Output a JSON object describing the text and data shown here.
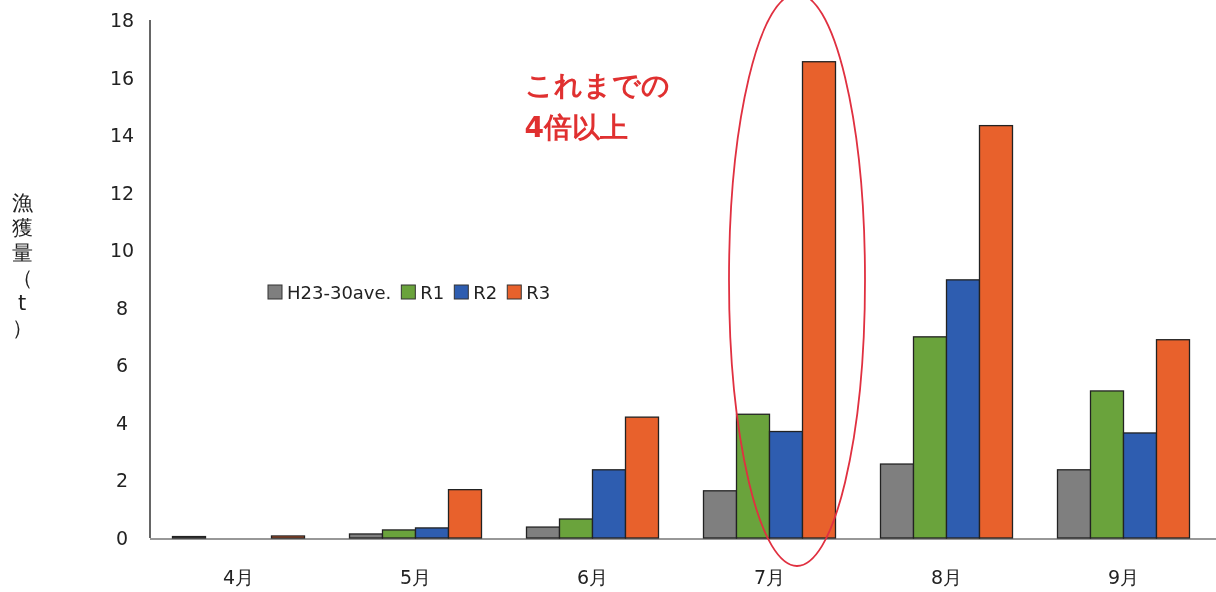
{
  "chart_data": {
    "type": "bar",
    "ylabel": "漁獲量（t）",
    "categories": [
      "4月",
      "5月",
      "6月",
      "7月",
      "8月",
      "9月"
    ],
    "series": [
      {
        "name": "H23-30ave.",
        "color": "#7f7f7f",
        "values": [
          0.05,
          0.14,
          0.38,
          1.64,
          2.57,
          2.37
        ]
      },
      {
        "name": "R1",
        "color": "#6aa33c",
        "values": [
          null,
          0.28,
          0.66,
          4.3,
          6.99,
          5.11
        ]
      },
      {
        "name": "R2",
        "color": "#2e5db0",
        "values": [
          null,
          0.35,
          2.37,
          3.7,
          8.97,
          3.65
        ]
      },
      {
        "name": "R3",
        "color": "#e8612c",
        "values": [
          0.07,
          1.68,
          4.2,
          16.55,
          14.33,
          6.89
        ]
      }
    ],
    "ylim": [
      0,
      18
    ],
    "yticks": [
      0,
      2,
      4,
      6,
      8,
      10,
      12,
      14,
      16,
      18
    ],
    "legend": "left",
    "grid": false,
    "annotations": [
      "これまでの\n4倍以上"
    ]
  }
}
